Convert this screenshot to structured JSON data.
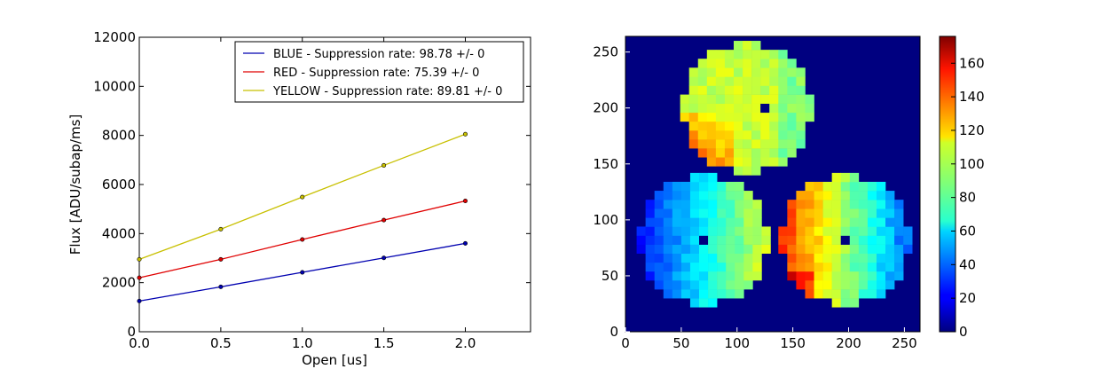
{
  "chart_data": [
    {
      "type": "line",
      "xlabel": "Open [us]",
      "ylabel": "Flux [ADU/subap/ms]",
      "xlim": [
        0.0,
        2.4
      ],
      "ylim": [
        0,
        12000
      ],
      "xticks": [
        "0.0",
        "0.5",
        "1.0",
        "1.5",
        "2.0"
      ],
      "yticks": [
        "0",
        "2000",
        "4000",
        "6000",
        "8000",
        "10000",
        "12000"
      ],
      "legend_position": "top-right",
      "grid": false,
      "series": [
        {
          "name": "BLUE - Suppression rate: 98.78 +/- 0",
          "color": "#0000b0",
          "x": [
            0.0,
            0.5,
            1.0,
            1.5,
            2.0
          ],
          "y": [
            1250,
            1830,
            2420,
            3010,
            3600
          ]
        },
        {
          "name": "RED - Suppression rate: 75.39 +/- 0",
          "color": "#e00000",
          "x": [
            0.0,
            0.5,
            1.0,
            1.5,
            2.0
          ],
          "y": [
            2200,
            2950,
            3760,
            4550,
            5330
          ]
        },
        {
          "name": "YELLOW - Suppression rate: 89.81 +/- 0",
          "color": "#c8c000",
          "x": [
            0.0,
            0.5,
            1.0,
            1.5,
            2.0
          ],
          "y": [
            2950,
            4180,
            5490,
            6780,
            8050
          ]
        }
      ]
    },
    {
      "type": "heatmap",
      "colormap": "jet",
      "xlim": [
        0,
        264
      ],
      "ylim": [
        0,
        264
      ],
      "xticks": [
        "0",
        "50",
        "100",
        "150",
        "200",
        "250"
      ],
      "yticks": [
        "0",
        "50",
        "100",
        "150",
        "200",
        "250"
      ],
      "colorbar_range": [
        0,
        176
      ],
      "colorbar_ticks": [
        "0",
        "20",
        "40",
        "60",
        "80",
        "100",
        "120",
        "140",
        "160"
      ],
      "background_value": 0,
      "pupils": [
        {
          "center": [
            109,
            200
          ],
          "radius": 60,
          "hole": [
            128,
            198
          ],
          "profile": "top pupil ~ 90-110, warmer (~120-140) toward lower-left"
        },
        {
          "center": [
            70,
            82
          ],
          "radius": 60,
          "hole": [
            68,
            82
          ],
          "profile": "left pupil ~ 30 (blue) on left edge rising to ~100 on right"
        },
        {
          "center": [
            197,
            82
          ],
          "radius": 60,
          "hole": [
            197,
            84
          ],
          "profile": "right pupil ~ 140 (orange-red) on left decreasing to ~40 on right"
        }
      ]
    }
  ]
}
